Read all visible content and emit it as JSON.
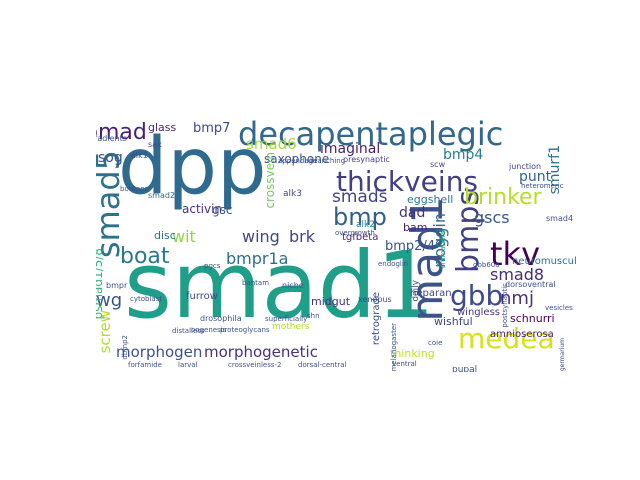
{
  "word_cloud": {
    "words": [
      {
        "text": "smad1",
        "color": "#1f9e89"
      },
      {
        "text": "dpp",
        "color": "#2f6b8e"
      },
      {
        "text": "decapentaplegic",
        "color": "#31688e"
      },
      {
        "text": "thickveins",
        "color": "#433e85"
      },
      {
        "text": "smad5",
        "color": "#2c728e"
      },
      {
        "text": "mad1",
        "color": "#3b528b"
      },
      {
        "text": "medea",
        "color": "#d8e219"
      },
      {
        "text": "tkv",
        "color": "#440154"
      },
      {
        "text": "gbb",
        "color": "#3e4a89"
      },
      {
        "text": "bmp",
        "color": "#35608d"
      },
      {
        "text": "bmps",
        "color": "#423f85"
      },
      {
        "text": "boat",
        "color": "#2a788e"
      },
      {
        "text": "pmad",
        "color": "#482173"
      },
      {
        "text": "brinker",
        "color": "#b5de2b"
      },
      {
        "text": "morphogen",
        "color": "#3b528b"
      },
      {
        "text": "morphogenetic",
        "color": "#46327e"
      },
      {
        "text": "wg",
        "color": "#3a538b"
      },
      {
        "text": "nmj",
        "color": "#46327e"
      },
      {
        "text": "smads",
        "color": "#414487"
      },
      {
        "text": "smad8",
        "color": "#472c7a"
      },
      {
        "text": "bmpr1a",
        "color": "#2e6e8e"
      },
      {
        "text": "brk",
        "color": "#414487"
      },
      {
        "text": "wing",
        "color": "#3f4788"
      },
      {
        "text": "wit",
        "color": "#8fd744"
      },
      {
        "text": "sog",
        "color": "#3b528b"
      },
      {
        "text": "smad6",
        "color": "#a5db36"
      },
      {
        "text": "bmp7",
        "color": "#3e4989"
      },
      {
        "text": "imaginal",
        "color": "#481f70"
      },
      {
        "text": "bmp4",
        "color": "#277f8e"
      },
      {
        "text": "punt",
        "color": "#33638d"
      },
      {
        "text": "gscs",
        "color": "#38588c"
      },
      {
        "text": "smurf1",
        "color": "#2c728e"
      },
      {
        "text": "noggin",
        "color": "#2d708e"
      },
      {
        "text": "dad",
        "color": "#46307e"
      },
      {
        "text": "bam",
        "color": "#482576"
      },
      {
        "text": "bmp2/4",
        "color": "#3b528b"
      },
      {
        "text": "screw",
        "color": "#b5de2b"
      },
      {
        "text": "psmad1/5/8",
        "color": "#35b779"
      },
      {
        "text": "saxophone",
        "color": "#39568c"
      },
      {
        "text": "crossvein",
        "color": "#6ece58"
      },
      {
        "text": "activin",
        "color": "#46337e"
      },
      {
        "text": "gsc",
        "color": "#39568c"
      },
      {
        "text": "eggshell",
        "color": "#2a788e"
      },
      {
        "text": "tgfbeta",
        "color": "#482475"
      },
      {
        "text": "heparan",
        "color": "#3e4989"
      },
      {
        "text": "wingless",
        "color": "#453882"
      },
      {
        "text": "schnurri",
        "color": "#440154"
      },
      {
        "text": "amnioserosa",
        "color": "#481a6c"
      },
      {
        "text": "neuromuscular",
        "color": "#2c728e"
      },
      {
        "text": "thinking",
        "color": "#c2df23"
      },
      {
        "text": "pupal",
        "color": "#3b528b"
      },
      {
        "text": "disc",
        "color": "#2d708e"
      },
      {
        "text": "furrow",
        "color": "#3e4a89"
      },
      {
        "text": "midgut",
        "color": "#46327e"
      },
      {
        "text": "retrograde",
        "color": "#3b528b"
      },
      {
        "text": "glass",
        "color": "#482878"
      },
      {
        "text": "alk3",
        "color": "#3e4989"
      },
      {
        "text": "alk2",
        "color": "#26828e"
      },
      {
        "text": "smad2",
        "color": "#31688e"
      },
      {
        "text": "scw",
        "color": "#3f4889"
      },
      {
        "text": "gradients",
        "color": "#3b528b"
      },
      {
        "text": "bmpr",
        "color": "#3b528b"
      },
      {
        "text": "sax",
        "color": "#3e4a89"
      },
      {
        "text": "alk1",
        "color": "#3e4a89"
      },
      {
        "text": "smad4",
        "color": "#3b528b"
      },
      {
        "text": "ommatidial",
        "color": "#27ad81"
      },
      {
        "text": "mothers",
        "color": "#addc30"
      },
      {
        "text": "junction",
        "color": "#424086"
      },
      {
        "text": "dorsoventral",
        "color": "#3b528b"
      },
      {
        "text": "niche",
        "color": "#3b528b"
      },
      {
        "text": "presynaptic",
        "color": "#433e85"
      },
      {
        "text": "postsynaptic",
        "color": "#3b528b"
      },
      {
        "text": "drosophila",
        "color": "#3b528b"
      },
      {
        "text": "daily",
        "color": "#3b528b"
      },
      {
        "text": "xenopus",
        "color": "#3e4989"
      },
      {
        "text": "wishful",
        "color": "#3f4788"
      },
      {
        "text": "oogenesis",
        "color": "#3b528b"
      },
      {
        "text": "germarium",
        "color": "#3b528b"
      },
      {
        "text": "vesicles",
        "color": "#3b528b"
      },
      {
        "text": "cytoblast",
        "color": "#3b528b"
      },
      {
        "text": "boutons",
        "color": "#3b528b"
      },
      {
        "text": "crossveinless-2",
        "color": "#3b528b"
      },
      {
        "text": "larval",
        "color": "#3b528b"
      },
      {
        "text": "dorsal-central",
        "color": "#3b528b"
      },
      {
        "text": "distalless",
        "color": "#3b528b"
      },
      {
        "text": "endoglin",
        "color": "#3b528b"
      },
      {
        "text": "proteoglycans",
        "color": "#3b528b"
      },
      {
        "text": "forfamide",
        "color": "#3b528b"
      },
      {
        "text": "dbmp2",
        "color": "#3b528b"
      },
      {
        "text": "heteromeric",
        "color": "#3b528b"
      },
      {
        "text": "overgrowth",
        "color": "#3b528b"
      },
      {
        "text": "gbb60a",
        "color": "#3b528b"
      },
      {
        "text": "coie",
        "color": "#3b528b"
      },
      {
        "text": "pgcs",
        "color": "#3b528b"
      },
      {
        "text": "appendage",
        "color": "#3b528b"
      },
      {
        "text": "bantam",
        "color": "#3b528b"
      },
      {
        "text": "superficially",
        "color": "#3b528b"
      },
      {
        "text": "melanogaster",
        "color": "#3b528b"
      },
      {
        "text": "ventral",
        "color": "#3b528b"
      },
      {
        "text": "branching",
        "color": "#3b528b"
      },
      {
        "text": "shn",
        "color": "#3b528b"
      }
    ]
  }
}
